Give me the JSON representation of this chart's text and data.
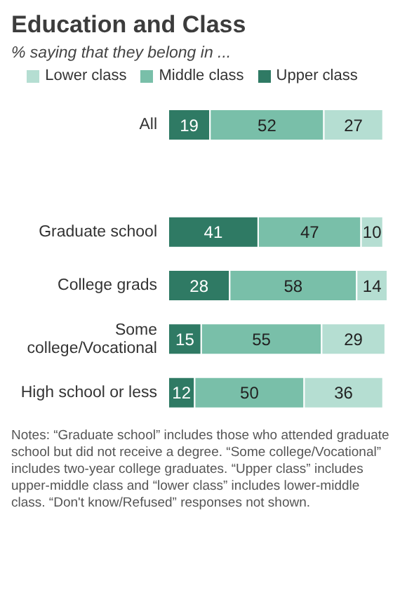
{
  "chart_data": {
    "type": "bar",
    "orientation": "horizontal",
    "stacked": true,
    "title": "Education and Class",
    "subtitle": "% saying that they belong in ...",
    "categories": [
      "All",
      null,
      "Graduate school",
      "College grads",
      "Some college/Vocational",
      "High school or less"
    ],
    "series": [
      {
        "name": "Upper class",
        "color": "#2f7a64",
        "values": [
          19,
          null,
          41,
          28,
          15,
          12
        ]
      },
      {
        "name": "Middle class",
        "color": "#79bfa9",
        "values": [
          52,
          null,
          47,
          58,
          55,
          50
        ]
      },
      {
        "name": "Lower class",
        "color": "#b5ded2",
        "values": [
          27,
          null,
          10,
          14,
          29,
          36
        ]
      }
    ],
    "data_labels": true,
    "legend": "top",
    "grid": false,
    "annotations": [
      "Notes: “Graduate school” includes those who attended graduate school but did not receive a degree. “Some college/Vocational” includes two-year college graduates. “Upper class” includes upper-middle class and “lower class” includes lower-middle class. “Don't know/Refused” responses not shown."
    ]
  }
}
